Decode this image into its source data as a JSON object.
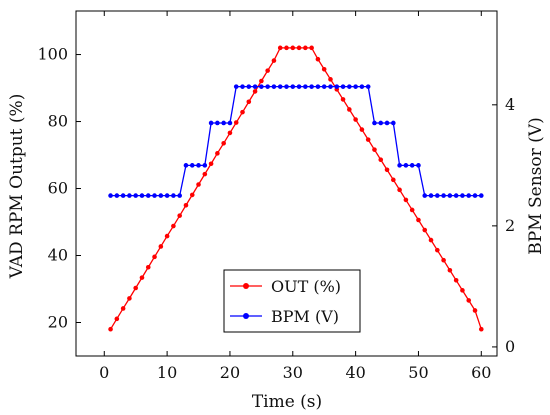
{
  "chart_data": {
    "type": "line",
    "title": "",
    "xlabel": "Time (s)",
    "ylabel_left": "VAD RPM Output (%)",
    "ylabel_right": "BPM Sensor (V)",
    "xlim": [
      -4.5,
      62.5
    ],
    "ylim_left": [
      10,
      113
    ],
    "ylim_right": [
      -0.15,
      5.55
    ],
    "x_ticks": [
      0,
      10,
      20,
      30,
      40,
      50,
      60
    ],
    "y_left_ticks": [
      20,
      40,
      60,
      80,
      100
    ],
    "y_right_ticks": [
      0,
      2,
      4
    ],
    "legend_position": "bottom-center",
    "series": [
      {
        "name": "OUT (%)",
        "axis": "left",
        "color": "#ff0000",
        "marker": "circle",
        "x": [
          1,
          2,
          3,
          4,
          5,
          6,
          7,
          8,
          9,
          10,
          11,
          12,
          13,
          14,
          15,
          16,
          17,
          18,
          19,
          20,
          21,
          22,
          23,
          24,
          25,
          26,
          27,
          28,
          29,
          30,
          31,
          32,
          33,
          34,
          35,
          36,
          37,
          38,
          39,
          40,
          41,
          42,
          43,
          44,
          45,
          46,
          47,
          48,
          49,
          50,
          51,
          52,
          53,
          54,
          55,
          56,
          57,
          58,
          59,
          60
        ],
        "y": [
          18,
          21.1,
          24.2,
          27.2,
          30.3,
          33.4,
          36.5,
          39.6,
          42.7,
          45.8,
          48.8,
          51.9,
          55,
          58.1,
          61.2,
          64.3,
          67.4,
          70.5,
          73.5,
          76.6,
          79.7,
          82.8,
          85.9,
          89,
          92.1,
          95.2,
          98.2,
          102,
          102,
          102,
          102,
          102,
          102,
          98.6,
          95.6,
          92.6,
          89.6,
          86.6,
          83.6,
          80.6,
          77.6,
          74.6,
          71.6,
          68.6,
          65.6,
          62.6,
          59.6,
          56.6,
          53.6,
          50.6,
          47.6,
          44.6,
          41.6,
          38.6,
          35.6,
          32.6,
          29.6,
          26.6,
          23.6,
          18
        ]
      },
      {
        "name": "BPM (V)",
        "axis": "right",
        "color": "#0000ff",
        "marker": "circle",
        "x": [
          1,
          2,
          3,
          4,
          5,
          6,
          7,
          8,
          9,
          10,
          11,
          12,
          13,
          14,
          15,
          16,
          17,
          18,
          19,
          20,
          21,
          22,
          23,
          24,
          25,
          26,
          27,
          28,
          29,
          30,
          31,
          32,
          33,
          34,
          35,
          36,
          37,
          38,
          39,
          40,
          41,
          42,
          43,
          44,
          45,
          46,
          47,
          48,
          49,
          50,
          51,
          52,
          53,
          54,
          55,
          56,
          57,
          58,
          59,
          60
        ],
        "y": [
          2.5,
          2.5,
          2.5,
          2.5,
          2.5,
          2.5,
          2.5,
          2.5,
          2.5,
          2.5,
          2.5,
          2.5,
          3,
          3,
          3,
          3,
          3.7,
          3.7,
          3.7,
          3.7,
          4.3,
          4.3,
          4.3,
          4.3,
          4.3,
          4.3,
          4.3,
          4.3,
          4.3,
          4.3,
          4.3,
          4.3,
          4.3,
          4.3,
          4.3,
          4.3,
          4.3,
          4.3,
          4.3,
          4.3,
          4.3,
          4.3,
          3.7,
          3.7,
          3.7,
          3.7,
          3,
          3,
          3,
          3,
          2.5,
          2.5,
          2.5,
          2.5,
          2.5,
          2.5,
          2.5,
          2.5,
          2.5,
          2.5
        ]
      }
    ]
  }
}
